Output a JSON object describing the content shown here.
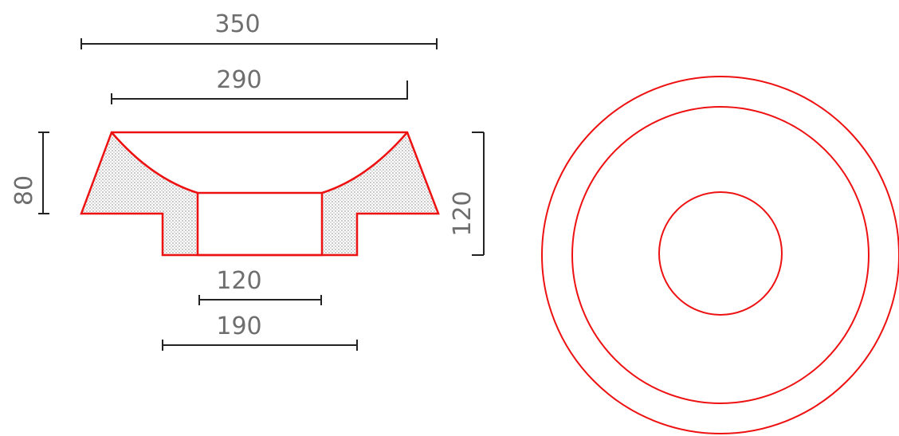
{
  "drawing": {
    "dimensions": {
      "top_outer_width": "350",
      "top_inner_width": "290",
      "left_height": "80",
      "right_height": "120",
      "bottom_bore_width": "120",
      "bottom_base_width": "190"
    },
    "colors": {
      "outline": "#ee1111",
      "dimension_line": "#222222",
      "dimension_text": "#6e6e6e",
      "hatch": "#bdbdbd"
    }
  }
}
